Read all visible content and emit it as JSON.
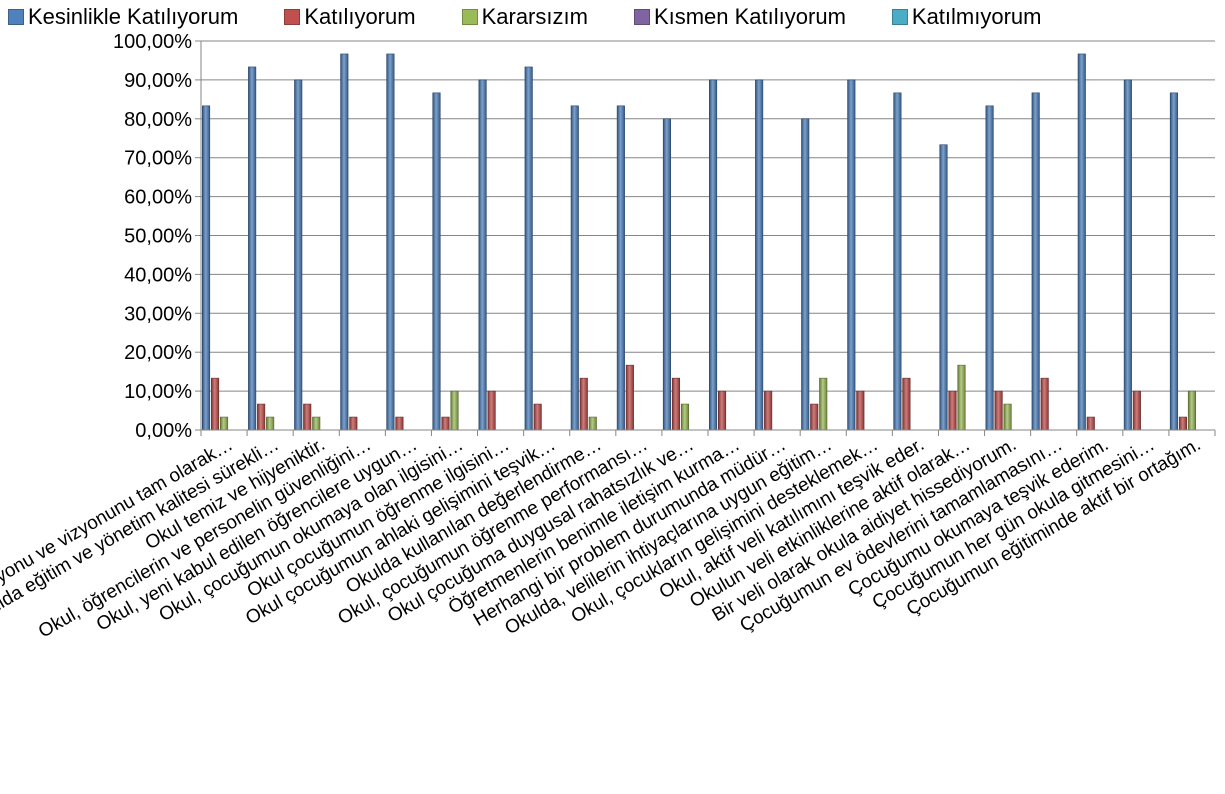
{
  "chart_data": {
    "type": "bar",
    "ylim": [
      0,
      100
    ],
    "yticks": [
      "0,00%",
      "10,00%",
      "20,00%",
      "30,00%",
      "40,00%",
      "50,00%",
      "60,00%",
      "70,00%",
      "80,00%",
      "90,00%",
      "100,00%"
    ],
    "grid": "horizontal",
    "legend_position": "top",
    "categories": [
      "Okul misyonu ve vizyonunu tam olarak…",
      "Okulda eğitim ve yönetim kalitesi sürekli…",
      "Okul temiz ve hijyeniktir.",
      "Okul, öğrencilerin ve personelin güvenliğini…",
      "Okul, yeni kabul edilen öğrencilere uygun…",
      "Okul, çocuğumun okumaya olan ilgisini…",
      "Okul çocuğumun öğrenme ilgisini…",
      "Okul çocuğumun ahlaki gelişimini teşvik…",
      "Okulda kullanılan değerlendirme…",
      "Okul, çocuğumun öğrenme performansı…",
      "Okul çocuğuma duygusal rahatsızlık ve…",
      "Öğretmenlerin benimle iletişim kurma…",
      "Herhangi bir problem durumunda müdür…",
      "Okulda, velilerin ihtiyaçlarına uygun eğitim…",
      "Okul, çocukların gelişimini desteklemek…",
      "Okul, aktif veli katılımını teşvik eder.",
      "Okulun veli etkinliklerine aktif olarak…",
      "Bir veli olarak okula aidiyet hissediyorum.",
      "Çocuğumun ev ödevlerini tamamlamasını…",
      "Çocuğumu okumaya teşvik ederim.",
      "Çocuğumun her gün okula gitmesini…",
      "Çocuğumun eğitiminde aktif bir ortağım."
    ],
    "series": [
      {
        "name": "Kesinlikle Katılıyorum",
        "color": "#4F81BD",
        "values": [
          83.33,
          93.33,
          90.0,
          96.67,
          96.67,
          86.67,
          90.0,
          93.33,
          83.33,
          83.33,
          80.0,
          90.0,
          90.0,
          80.0,
          90.0,
          86.67,
          73.33,
          83.33,
          86.67,
          96.67,
          90.0,
          86.67
        ]
      },
      {
        "name": "Katılıyorum",
        "color": "#C0504D",
        "values": [
          13.33,
          6.67,
          6.67,
          3.33,
          3.33,
          3.33,
          10.0,
          6.67,
          13.33,
          16.67,
          13.33,
          10.0,
          10.0,
          6.67,
          10.0,
          13.33,
          10.0,
          10.0,
          13.33,
          3.33,
          10.0,
          3.33
        ]
      },
      {
        "name": "Kararsızım",
        "color": "#9BBB59",
        "values": [
          3.33,
          3.33,
          3.33,
          0,
          0,
          10.0,
          0,
          0,
          3.33,
          0,
          6.67,
          0,
          0,
          13.33,
          0,
          0,
          16.67,
          6.67,
          0,
          0,
          0,
          10.0
        ]
      },
      {
        "name": "Kısmen Katılıyorum",
        "color": "#8064A2",
        "values": [
          0,
          0,
          0,
          0,
          0,
          0,
          0,
          0,
          0,
          0,
          0,
          0,
          0,
          0,
          0,
          0,
          0,
          0,
          0,
          0,
          0,
          0
        ]
      },
      {
        "name": "Katılmıyorum",
        "color": "#4BACC6",
        "values": [
          0,
          0,
          0,
          0,
          0,
          0,
          0,
          0,
          0,
          0,
          0,
          0,
          0,
          0,
          0,
          0,
          0,
          0,
          0,
          0,
          0,
          0
        ]
      }
    ]
  }
}
